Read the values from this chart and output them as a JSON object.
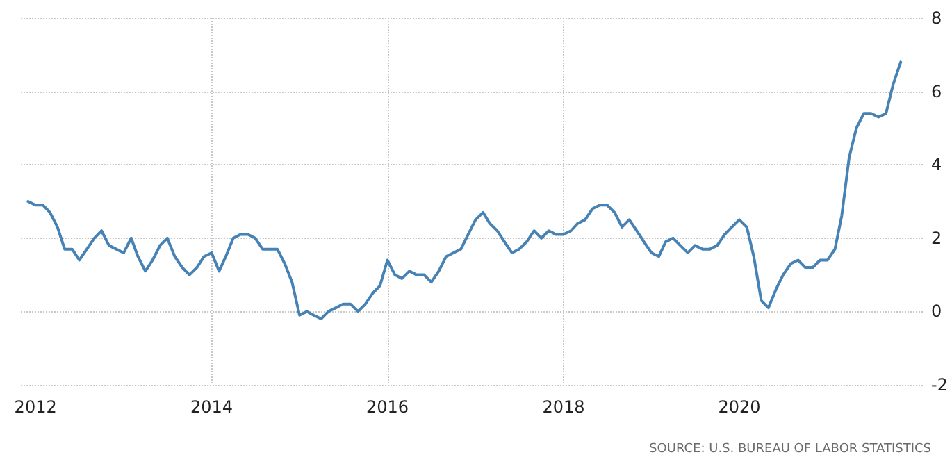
{
  "chart_data": {
    "type": "line",
    "x": [
      "2011-12",
      "2012-01",
      "2012-02",
      "2012-03",
      "2012-04",
      "2012-05",
      "2012-06",
      "2012-07",
      "2012-08",
      "2012-09",
      "2012-10",
      "2012-11",
      "2012-12",
      "2013-01",
      "2013-02",
      "2013-03",
      "2013-04",
      "2013-05",
      "2013-06",
      "2013-07",
      "2013-08",
      "2013-09",
      "2013-10",
      "2013-11",
      "2013-12",
      "2014-01",
      "2014-02",
      "2014-03",
      "2014-04",
      "2014-05",
      "2014-06",
      "2014-07",
      "2014-08",
      "2014-09",
      "2014-10",
      "2014-11",
      "2014-12",
      "2015-01",
      "2015-02",
      "2015-03",
      "2015-04",
      "2015-05",
      "2015-06",
      "2015-07",
      "2015-08",
      "2015-09",
      "2015-10",
      "2015-11",
      "2015-12",
      "2016-01",
      "2016-02",
      "2016-03",
      "2016-04",
      "2016-05",
      "2016-06",
      "2016-07",
      "2016-08",
      "2016-09",
      "2016-10",
      "2016-11",
      "2016-12",
      "2017-01",
      "2017-02",
      "2017-03",
      "2017-04",
      "2017-05",
      "2017-06",
      "2017-07",
      "2017-08",
      "2017-09",
      "2017-10",
      "2017-11",
      "2017-12",
      "2018-01",
      "2018-02",
      "2018-03",
      "2018-04",
      "2018-05",
      "2018-06",
      "2018-07",
      "2018-08",
      "2018-09",
      "2018-10",
      "2018-11",
      "2018-12",
      "2019-01",
      "2019-02",
      "2019-03",
      "2019-04",
      "2019-05",
      "2019-06",
      "2019-07",
      "2019-08",
      "2019-09",
      "2019-10",
      "2019-11",
      "2019-12",
      "2020-01",
      "2020-02",
      "2020-03",
      "2020-04",
      "2020-05",
      "2020-06",
      "2020-07",
      "2020-08",
      "2020-09",
      "2020-10",
      "2020-11",
      "2020-12",
      "2021-01",
      "2021-02",
      "2021-03",
      "2021-04",
      "2021-05",
      "2021-06",
      "2021-07",
      "2021-08",
      "2021-09",
      "2021-10",
      "2021-11"
    ],
    "series": [
      {
        "color": "#4682b4",
        "values": [
          3.0,
          2.9,
          2.9,
          2.7,
          2.3,
          1.7,
          1.7,
          1.4,
          1.7,
          2.0,
          2.2,
          1.8,
          1.7,
          1.6,
          2.0,
          1.5,
          1.1,
          1.4,
          1.8,
          2.0,
          1.5,
          1.2,
          1.0,
          1.2,
          1.5,
          1.6,
          1.1,
          1.5,
          2.0,
          2.1,
          2.1,
          2.0,
          1.7,
          1.7,
          1.7,
          1.3,
          0.8,
          -0.1,
          0.0,
          -0.1,
          -0.2,
          0.0,
          0.1,
          0.2,
          0.2,
          0.0,
          0.2,
          0.5,
          0.7,
          1.4,
          1.0,
          0.9,
          1.1,
          1.0,
          1.0,
          0.8,
          1.1,
          1.5,
          1.6,
          1.7,
          2.1,
          2.5,
          2.7,
          2.4,
          2.2,
          1.9,
          1.6,
          1.7,
          1.9,
          2.2,
          2.0,
          2.2,
          2.1,
          2.1,
          2.2,
          2.4,
          2.5,
          2.8,
          2.9,
          2.9,
          2.7,
          2.3,
          2.5,
          2.2,
          1.9,
          1.6,
          1.5,
          1.9,
          2.0,
          1.8,
          1.6,
          1.8,
          1.7,
          1.7,
          1.8,
          2.1,
          2.3,
          2.5,
          2.3,
          1.5,
          0.3,
          0.1,
          0.6,
          1.0,
          1.3,
          1.4,
          1.2,
          1.2,
          1.4,
          1.4,
          1.7,
          2.6,
          4.2,
          5.0,
          5.4,
          5.4,
          5.3,
          5.4,
          6.2,
          6.8
        ]
      }
    ],
    "xlim": [
      "2011-11",
      "2022-02"
    ],
    "xticks": [
      {
        "value": "2012-01",
        "label": "2012"
      },
      {
        "value": "2014-01",
        "label": "2014"
      },
      {
        "value": "2016-01",
        "label": "2016"
      },
      {
        "value": "2018-01",
        "label": "2018"
      },
      {
        "value": "2020-01",
        "label": "2020"
      }
    ],
    "ylim": [
      -2,
      8
    ],
    "yticks": [
      -2,
      0,
      2,
      4,
      6,
      8
    ],
    "grid": true,
    "line_style": "solid",
    "marker": "none",
    "annotations": [
      "SOURCE: U.S. BUREAU OF LABOR STATISTICS"
    ]
  }
}
